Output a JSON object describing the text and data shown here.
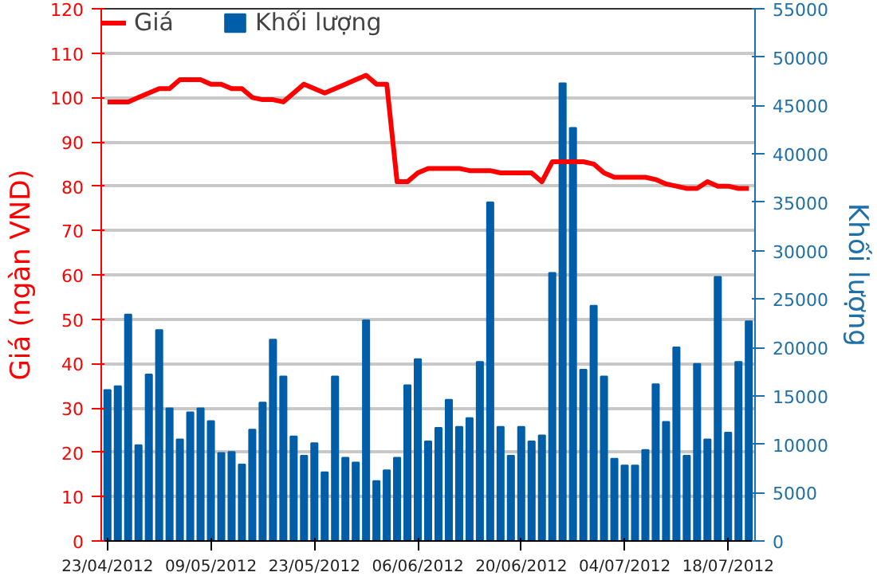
{
  "chart_data": {
    "type": "bar",
    "categories": [
      "23/04/2012",
      null,
      null,
      null,
      null,
      null,
      null,
      null,
      null,
      null,
      "09/05/2012",
      null,
      null,
      null,
      null,
      null,
      null,
      null,
      null,
      null,
      "23/05/2012",
      null,
      null,
      null,
      null,
      null,
      null,
      null,
      null,
      null,
      "06/06/2012",
      null,
      null,
      null,
      null,
      null,
      null,
      null,
      null,
      null,
      "20/06/2012",
      null,
      null,
      null,
      null,
      null,
      null,
      null,
      null,
      null,
      "04/07/2012",
      null,
      null,
      null,
      null,
      null,
      null,
      null,
      null,
      null,
      "18/07/2012",
      null,
      null
    ],
    "series": [
      {
        "name": "Giá",
        "type": "line",
        "color": "#ff0000",
        "values": [
          99,
          99,
          99,
          100,
          101,
          102,
          102,
          104,
          104,
          104,
          103,
          103,
          102,
          102,
          100,
          99.5,
          99.5,
          99,
          101,
          103,
          102,
          101,
          102,
          103,
          104,
          105,
          103,
          103,
          81,
          81,
          83,
          84,
          84,
          84,
          84,
          83.5,
          83.5,
          83.5,
          83,
          83,
          83,
          83,
          81,
          85.5,
          85.5,
          85.5,
          85.5,
          85,
          83,
          82,
          82,
          82,
          82,
          81.5,
          80.5,
          80,
          79.5,
          79.5,
          81,
          80,
          80,
          79.5,
          79.5
        ]
      },
      {
        "name": "Khối lượng",
        "axis": "y2",
        "color": "#005ea8",
        "values": [
          15600,
          16000,
          23400,
          9900,
          17200,
          21800,
          13700,
          10500,
          13300,
          13700,
          12400,
          9100,
          9200,
          7900,
          11500,
          14300,
          20800,
          17000,
          10800,
          8800,
          10100,
          7100,
          17000,
          8600,
          8100,
          22800,
          6200,
          7300,
          8600,
          16100,
          18800,
          10300,
          11700,
          14600,
          11800,
          12700,
          18500,
          35000,
          11800,
          8800,
          11800,
          10300,
          10900,
          27700,
          47300,
          42700,
          17700,
          24300,
          17000,
          8500,
          7800,
          7800,
          9400,
          16200,
          12300,
          20000,
          8800,
          18300,
          10500,
          27300,
          11200,
          18500,
          22700
        ]
      }
    ],
    "ylabel": "Giá (ngàn VND)",
    "y2label": "Khối lượng",
    "ylim": [
      0,
      120
    ],
    "yticks": [
      0,
      10,
      20,
      30,
      40,
      50,
      60,
      70,
      80,
      90,
      100,
      110,
      120
    ],
    "y2lim": [
      0,
      55000
    ],
    "y2ticks": [
      0,
      5000,
      10000,
      15000,
      20000,
      25000,
      30000,
      35000,
      40000,
      45000,
      50000,
      55000
    ],
    "grid": "y",
    "legend": "top left"
  }
}
